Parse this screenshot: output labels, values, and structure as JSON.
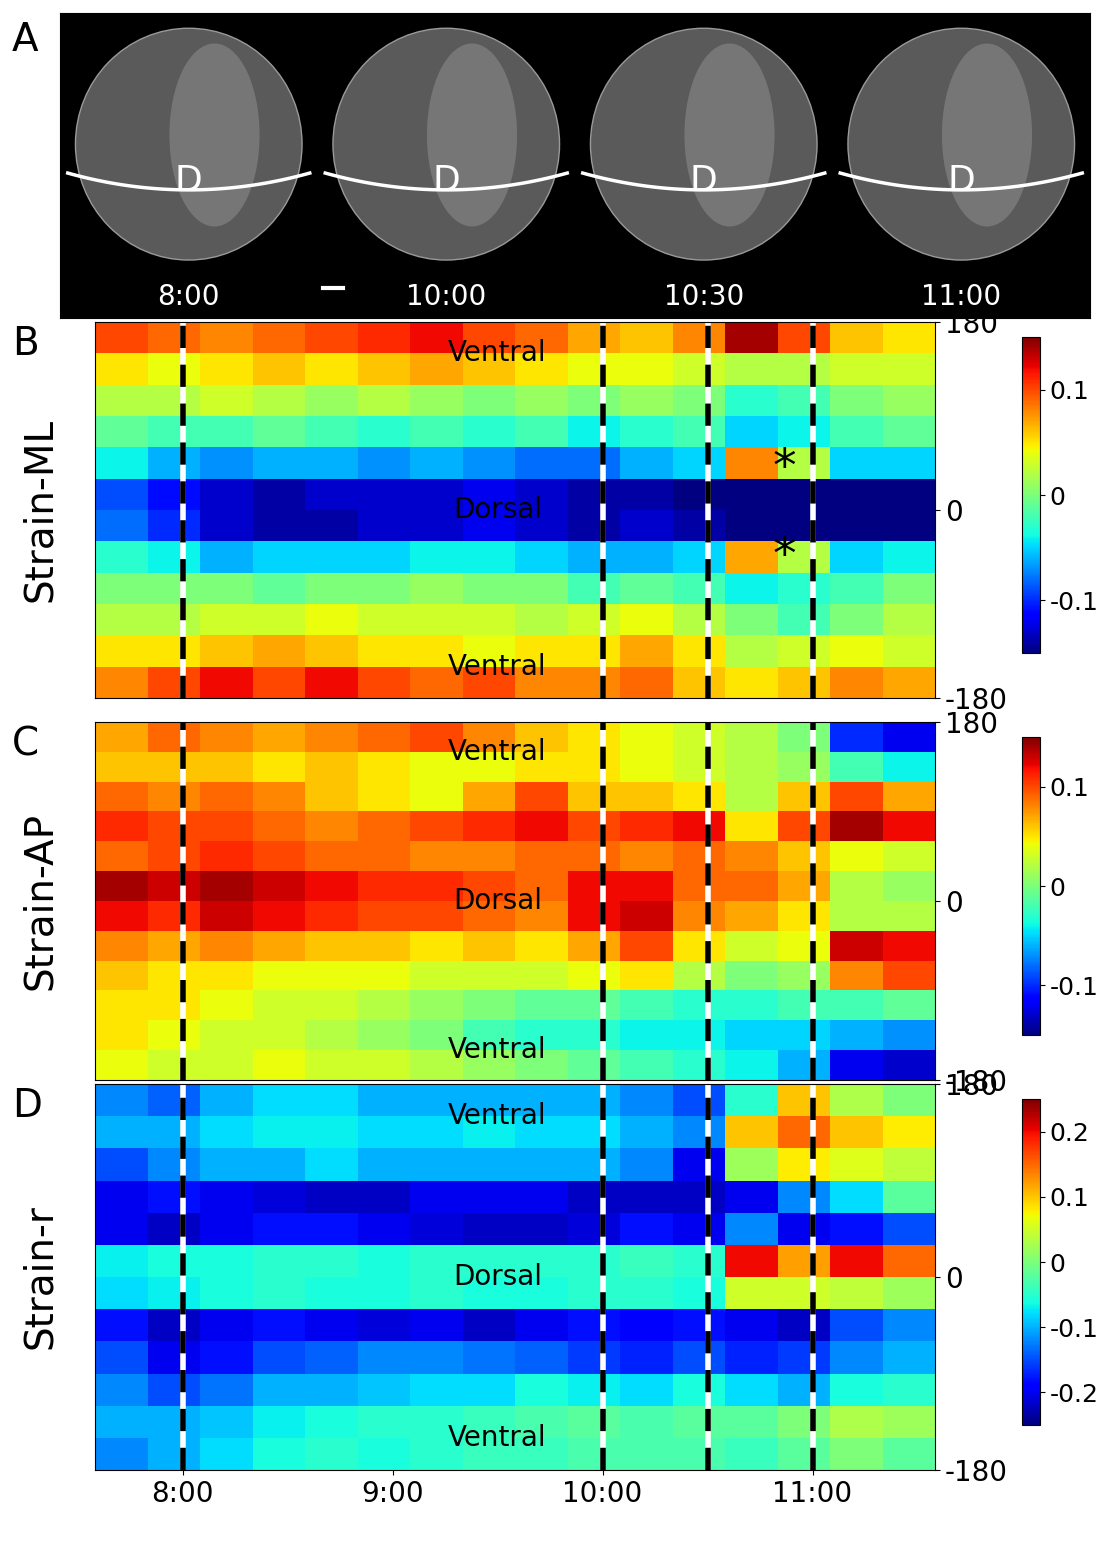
{
  "panel_a": {
    "panel_label": "A",
    "frames": [
      {
        "time": "8:00",
        "label": "D"
      },
      {
        "time": "10:00",
        "label": "D"
      },
      {
        "time": "10:30",
        "label": "D"
      },
      {
        "time": "11:00",
        "label": "D"
      }
    ]
  },
  "chart_data": [
    {
      "type": "heatmap",
      "panel_label": "B",
      "ylabel": "Strain-ML",
      "tick_labels": "y",
      "x_edges": [
        455,
        470,
        485,
        500,
        515,
        530,
        545,
        560,
        575,
        590,
        605,
        620,
        635,
        650,
        665,
        680,
        695
      ],
      "y_edges": [
        -180,
        -150,
        -120,
        -90,
        -60,
        -30,
        0,
        30,
        60,
        90,
        120,
        150,
        180
      ],
      "xlim": [
        455,
        695
      ],
      "ylim": [
        -180,
        180
      ],
      "yticks": [
        180,
        0,
        -180
      ],
      "vlines": [
        480,
        600,
        630,
        660
      ],
      "colorbar_range": [
        -0.15,
        0.15
      ],
      "colorbar_ticks": [
        0.1,
        0,
        -0.1
      ],
      "annotations": [
        {
          "text": "Ventral",
          "x": 570,
          "y": 150
        },
        {
          "text": "Dorsal",
          "x": 570,
          "y": 0
        },
        {
          "text": "Ventral",
          "x": 570,
          "y": -150
        },
        {
          "text": "*",
          "x": 652,
          "y": 40
        },
        {
          "text": "*",
          "x": 652,
          "y": -45
        }
      ],
      "cells": [
        [
          0.08,
          0.1,
          0.12,
          0.1,
          0.12,
          0.1,
          0.09,
          0.1,
          0.08,
          0.08,
          0.09,
          0.06,
          0.05,
          0.06,
          0.08,
          0.07
        ],
        [
          0.05,
          0.05,
          0.06,
          0.07,
          0.06,
          0.05,
          0.05,
          0.04,
          0.05,
          0.05,
          0.07,
          0.05,
          0.02,
          0.03,
          0.04,
          0.03
        ],
        [
          0.02,
          0.02,
          0.03,
          0.03,
          0.04,
          0.03,
          0.03,
          0.03,
          0.02,
          0.03,
          0.04,
          0.02,
          0.0,
          -0.02,
          0.0,
          0.02
        ],
        [
          0.0,
          0.0,
          0.0,
          -0.01,
          0.0,
          0.0,
          0.01,
          0.0,
          0.0,
          -0.02,
          -0.01,
          -0.02,
          -0.04,
          -0.03,
          -0.02,
          0.0
        ],
        [
          -0.03,
          -0.04,
          -0.06,
          -0.05,
          -0.05,
          -0.05,
          -0.04,
          -0.04,
          -0.05,
          -0.06,
          -0.06,
          -0.05,
          0.07,
          0.02,
          -0.05,
          -0.04
        ],
        [
          -0.08,
          -0.1,
          -0.13,
          -0.14,
          -0.14,
          -0.13,
          -0.13,
          -0.12,
          -0.13,
          -0.14,
          -0.13,
          -0.14,
          -0.15,
          -0.15,
          -0.15,
          -0.15
        ],
        [
          -0.09,
          -0.11,
          -0.13,
          -0.14,
          -0.13,
          -0.13,
          -0.13,
          -0.12,
          -0.13,
          -0.14,
          -0.14,
          -0.15,
          -0.15,
          -0.15,
          -0.15,
          -0.15
        ],
        [
          -0.04,
          -0.06,
          -0.07,
          -0.06,
          -0.06,
          -0.07,
          -0.06,
          -0.07,
          -0.08,
          -0.08,
          -0.06,
          -0.05,
          0.08,
          0.02,
          -0.05,
          -0.05
        ],
        [
          -0.01,
          -0.02,
          -0.02,
          -0.01,
          -0.02,
          -0.03,
          -0.02,
          -0.03,
          -0.02,
          -0.04,
          -0.03,
          -0.02,
          -0.05,
          -0.04,
          -0.02,
          -0.01
        ],
        [
          0.02,
          0.02,
          0.03,
          0.02,
          0.01,
          0.02,
          0.01,
          0.0,
          0.01,
          0.0,
          0.01,
          0.0,
          -0.03,
          -0.02,
          0.0,
          0.01
        ],
        [
          0.05,
          0.04,
          0.05,
          0.06,
          0.05,
          0.06,
          0.07,
          0.06,
          0.05,
          0.04,
          0.04,
          0.03,
          0.02,
          0.02,
          0.03,
          0.03
        ],
        [
          0.1,
          0.09,
          0.08,
          0.09,
          0.1,
          0.11,
          0.12,
          0.1,
          0.09,
          0.07,
          0.06,
          0.08,
          0.14,
          0.1,
          0.06,
          0.05
        ]
      ]
    },
    {
      "type": "heatmap",
      "panel_label": "C",
      "ylabel": "Strain-AP",
      "tick_labels": "y",
      "x_edges": [
        455,
        470,
        485,
        500,
        515,
        530,
        545,
        560,
        575,
        590,
        605,
        620,
        635,
        650,
        665,
        680,
        695
      ],
      "y_edges": [
        -180,
        -150,
        -120,
        -90,
        -60,
        -30,
        0,
        30,
        60,
        90,
        120,
        150,
        180
      ],
      "xlim": [
        455,
        695
      ],
      "ylim": [
        -180,
        180
      ],
      "yticks": [
        180,
        0,
        -180
      ],
      "vlines": [
        480,
        600,
        630,
        660
      ],
      "colorbar_range": [
        -0.15,
        0.15
      ],
      "colorbar_ticks": [
        0.1,
        0,
        -0.1
      ],
      "annotations": [
        {
          "text": "Ventral",
          "x": 570,
          "y": 150
        },
        {
          "text": "Dorsal",
          "x": 570,
          "y": 0
        },
        {
          "text": "Ventral",
          "x": 570,
          "y": -150
        }
      ],
      "cells": [
        [
          0.04,
          0.03,
          0.03,
          0.04,
          0.03,
          0.03,
          0.02,
          0.01,
          0.0,
          -0.01,
          -0.02,
          -0.03,
          -0.04,
          -0.06,
          -0.12,
          -0.13
        ],
        [
          0.05,
          0.04,
          0.03,
          0.03,
          0.02,
          0.01,
          0.0,
          -0.02,
          -0.03,
          -0.03,
          -0.04,
          -0.04,
          -0.05,
          -0.05,
          -0.06,
          -0.07
        ],
        [
          0.05,
          0.05,
          0.04,
          0.03,
          0.03,
          0.02,
          0.01,
          0.0,
          -0.01,
          -0.01,
          -0.02,
          -0.03,
          -0.03,
          -0.02,
          -0.02,
          -0.01
        ],
        [
          0.06,
          0.05,
          0.05,
          0.04,
          0.04,
          0.04,
          0.03,
          0.03,
          0.03,
          0.04,
          0.05,
          0.02,
          0.0,
          0.01,
          0.08,
          0.1
        ],
        [
          0.08,
          0.07,
          0.08,
          0.07,
          0.06,
          0.06,
          0.05,
          0.06,
          0.05,
          0.07,
          0.1,
          0.05,
          0.03,
          0.04,
          0.13,
          0.12
        ],
        [
          0.12,
          0.11,
          0.13,
          0.12,
          0.11,
          0.1,
          0.1,
          0.09,
          0.08,
          0.12,
          0.13,
          0.08,
          0.07,
          0.05,
          0.02,
          0.02
        ],
        [
          0.14,
          0.13,
          0.14,
          0.13,
          0.12,
          0.11,
          0.11,
          0.1,
          0.09,
          0.12,
          0.12,
          0.09,
          0.09,
          0.07,
          0.02,
          0.01
        ],
        [
          0.09,
          0.1,
          0.11,
          0.1,
          0.09,
          0.09,
          0.08,
          0.08,
          0.09,
          0.09,
          0.08,
          0.09,
          0.08,
          0.06,
          0.04,
          0.03
        ],
        [
          0.11,
          0.1,
          0.1,
          0.09,
          0.08,
          0.09,
          0.1,
          0.11,
          0.12,
          0.1,
          0.11,
          0.12,
          0.05,
          0.1,
          0.14,
          0.12
        ],
        [
          0.09,
          0.08,
          0.09,
          0.08,
          0.06,
          0.05,
          0.04,
          0.07,
          0.1,
          0.06,
          0.06,
          0.05,
          0.02,
          0.06,
          0.1,
          0.07
        ],
        [
          0.06,
          0.06,
          0.06,
          0.05,
          0.06,
          0.05,
          0.04,
          0.04,
          0.05,
          0.05,
          0.04,
          0.03,
          0.02,
          0.01,
          -0.02,
          -0.04
        ],
        [
          0.07,
          0.09,
          0.08,
          0.07,
          0.08,
          0.09,
          0.1,
          0.08,
          0.06,
          0.05,
          0.04,
          0.03,
          0.02,
          0.0,
          -0.1,
          -0.12
        ]
      ]
    },
    {
      "type": "heatmap",
      "panel_label": "D",
      "ylabel": "Strain-r",
      "x_edges": [
        455,
        470,
        485,
        500,
        515,
        530,
        545,
        560,
        575,
        590,
        605,
        620,
        635,
        650,
        665,
        680,
        695
      ],
      "y_edges": [
        -180,
        -150,
        -120,
        -90,
        -60,
        -30,
        0,
        30,
        60,
        90,
        120,
        150,
        180
      ],
      "xlim": [
        455,
        695
      ],
      "ylim": [
        -180,
        180
      ],
      "yticks": [
        180,
        0,
        -180
      ],
      "xticks": [
        {
          "value": 480,
          "label": "8:00"
        },
        {
          "value": 540,
          "label": "9:00"
        },
        {
          "value": 600,
          "label": "10:00"
        },
        {
          "value": 660,
          "label": "11:00"
        }
      ],
      "vlines": [
        480,
        600,
        630,
        660
      ],
      "colorbar_range": [
        -0.25,
        0.25
      ],
      "colorbar_ticks": [
        0.2,
        0.1,
        0,
        -0.1,
        -0.2
      ],
      "annotations": [
        {
          "text": "Ventral",
          "x": 570,
          "y": 150
        },
        {
          "text": "Dorsal",
          "x": 570,
          "y": 0
        },
        {
          "text": "Ventral",
          "x": 570,
          "y": -150
        }
      ],
      "cells": [
        [
          -0.12,
          -0.1,
          -0.08,
          -0.06,
          -0.05,
          -0.06,
          -0.05,
          -0.04,
          -0.04,
          -0.03,
          -0.03,
          -0.03,
          -0.04,
          -0.02,
          0.0,
          -0.02
        ],
        [
          -0.1,
          -0.1,
          -0.09,
          -0.07,
          -0.06,
          -0.05,
          -0.05,
          -0.04,
          -0.03,
          -0.02,
          -0.03,
          -0.02,
          -0.02,
          0.0,
          0.03,
          0.02
        ],
        [
          -0.12,
          -0.15,
          -0.13,
          -0.1,
          -0.1,
          -0.09,
          -0.08,
          -0.08,
          -0.06,
          -0.07,
          -0.08,
          -0.06,
          -0.08,
          -0.1,
          -0.06,
          -0.05
        ],
        [
          -0.15,
          -0.2,
          -0.18,
          -0.15,
          -0.14,
          -0.12,
          -0.12,
          -0.13,
          -0.14,
          -0.16,
          -0.17,
          -0.15,
          -0.17,
          -0.16,
          -0.12,
          -0.1
        ],
        [
          -0.18,
          -0.22,
          -0.2,
          -0.18,
          -0.2,
          -0.21,
          -0.2,
          -0.22,
          -0.2,
          -0.18,
          -0.19,
          -0.18,
          -0.2,
          -0.22,
          -0.15,
          -0.12
        ],
        [
          -0.08,
          -0.07,
          -0.06,
          -0.05,
          -0.06,
          -0.06,
          -0.05,
          -0.06,
          -0.06,
          -0.05,
          -0.05,
          -0.06,
          0.05,
          0.05,
          0.04,
          0.02
        ],
        [
          -0.07,
          -0.06,
          -0.06,
          -0.05,
          -0.05,
          -0.06,
          -0.05,
          -0.05,
          -0.05,
          -0.05,
          -0.04,
          -0.05,
          0.2,
          0.12,
          0.2,
          0.15
        ],
        [
          -0.2,
          -0.22,
          -0.2,
          -0.18,
          -0.18,
          -0.2,
          -0.21,
          -0.22,
          -0.22,
          -0.21,
          -0.18,
          -0.2,
          -0.12,
          -0.2,
          -0.18,
          -0.15
        ],
        [
          -0.2,
          -0.18,
          -0.2,
          -0.21,
          -0.22,
          -0.22,
          -0.2,
          -0.2,
          -0.2,
          -0.22,
          -0.22,
          -0.22,
          -0.2,
          -0.12,
          -0.08,
          -0.02
        ],
        [
          -0.15,
          -0.12,
          -0.1,
          -0.1,
          -0.08,
          -0.1,
          -0.1,
          -0.1,
          -0.1,
          -0.1,
          -0.12,
          -0.2,
          0.02,
          0.08,
          0.06,
          0.04
        ],
        [
          -0.1,
          -0.1,
          -0.08,
          -0.07,
          -0.07,
          -0.08,
          -0.08,
          -0.07,
          -0.08,
          -0.08,
          -0.1,
          -0.12,
          0.1,
          0.15,
          0.1,
          0.08
        ],
        [
          -0.12,
          -0.14,
          -0.1,
          -0.08,
          -0.08,
          -0.1,
          -0.1,
          -0.1,
          -0.1,
          -0.1,
          -0.12,
          -0.15,
          -0.05,
          0.1,
          0.03,
          0.0
        ]
      ]
    }
  ]
}
